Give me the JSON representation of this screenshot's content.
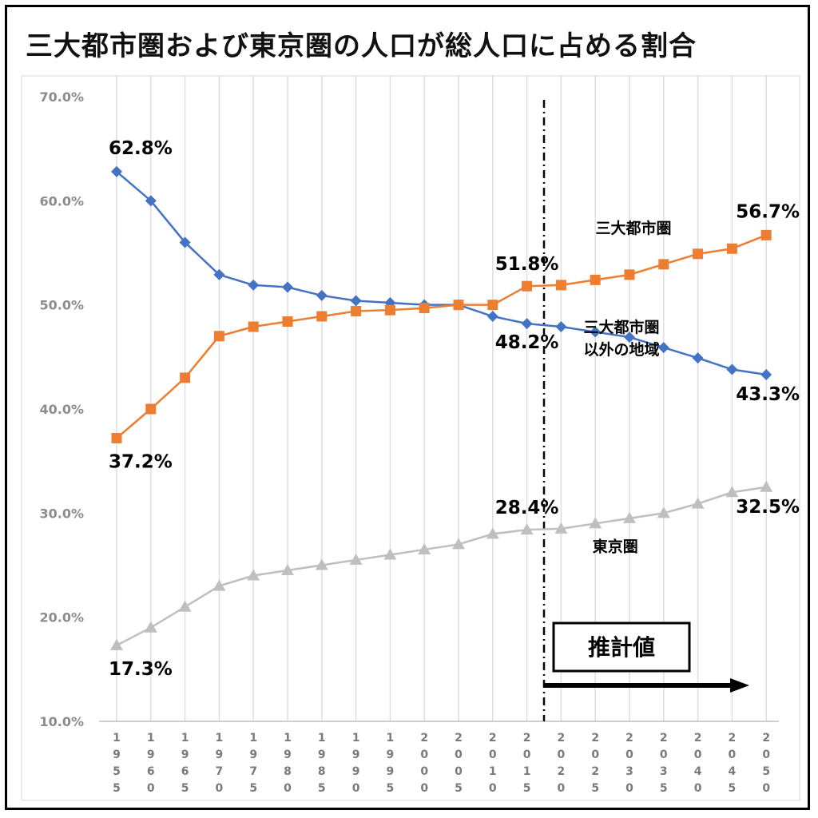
{
  "chart_data": {
    "type": "line",
    "title": "三大都市圏および東京圏の人口が総人口に占める割合",
    "x": [
      "1955",
      "1960",
      "1965",
      "1970",
      "1975",
      "1980",
      "1985",
      "1990",
      "1995",
      "2000",
      "2005",
      "2010",
      "2015",
      "2020",
      "2025",
      "2030",
      "2035",
      "2040",
      "2045",
      "2050"
    ],
    "ylim": [
      10,
      70
    ],
    "yticks": [
      "10.0%",
      "20.0%",
      "30.0%",
      "40.0%",
      "50.0%",
      "60.0%",
      "70.0%"
    ],
    "grid": "vertical",
    "series": [
      {
        "name": "三大都市圏以外の地域",
        "label_lines": [
          "三大都市圏",
          "以外の地域"
        ],
        "color": "#4472c4",
        "marker": "diamond",
        "values": [
          62.8,
          60.0,
          56.0,
          52.9,
          51.9,
          51.7,
          50.9,
          50.4,
          50.2,
          50.0,
          50.0,
          48.9,
          48.2,
          47.9,
          47.4,
          46.9,
          45.9,
          44.9,
          43.8,
          43.3
        ]
      },
      {
        "name": "三大都市圏",
        "label_lines": [
          "三大都市圏"
        ],
        "color": "#ed7d31",
        "marker": "square",
        "values": [
          37.2,
          40.0,
          43.0,
          47.0,
          47.9,
          48.4,
          48.9,
          49.4,
          49.5,
          49.7,
          50.0,
          50.0,
          51.8,
          51.9,
          52.4,
          52.9,
          53.9,
          54.9,
          55.4,
          56.7
        ]
      },
      {
        "name": "東京圏",
        "label_lines": [
          "東京圏"
        ],
        "color": "#bfbfbf",
        "marker": "triangle",
        "values": [
          17.3,
          19.0,
          21.0,
          23.0,
          24.0,
          24.5,
          25.0,
          25.5,
          26.0,
          26.5,
          27.0,
          28.0,
          28.4,
          28.5,
          29.0,
          29.5,
          30.0,
          30.9,
          32.0,
          32.5
        ]
      }
    ],
    "data_labels": [
      {
        "series": 0,
        "index": 0,
        "text": "62.8%"
      },
      {
        "series": 0,
        "index": 12,
        "text": "48.2%"
      },
      {
        "series": 0,
        "index": 19,
        "text": "43.3%"
      },
      {
        "series": 1,
        "index": 0,
        "text": "37.2%"
      },
      {
        "series": 1,
        "index": 12,
        "text": "51.8%"
      },
      {
        "series": 1,
        "index": 19,
        "text": "56.7%"
      },
      {
        "series": 2,
        "index": 0,
        "text": "17.3%"
      },
      {
        "series": 2,
        "index": 12,
        "text": "28.4%"
      },
      {
        "series": 2,
        "index": 19,
        "text": "32.5%"
      }
    ],
    "estimate_divider_after": "2015",
    "annotation": "推計値"
  }
}
